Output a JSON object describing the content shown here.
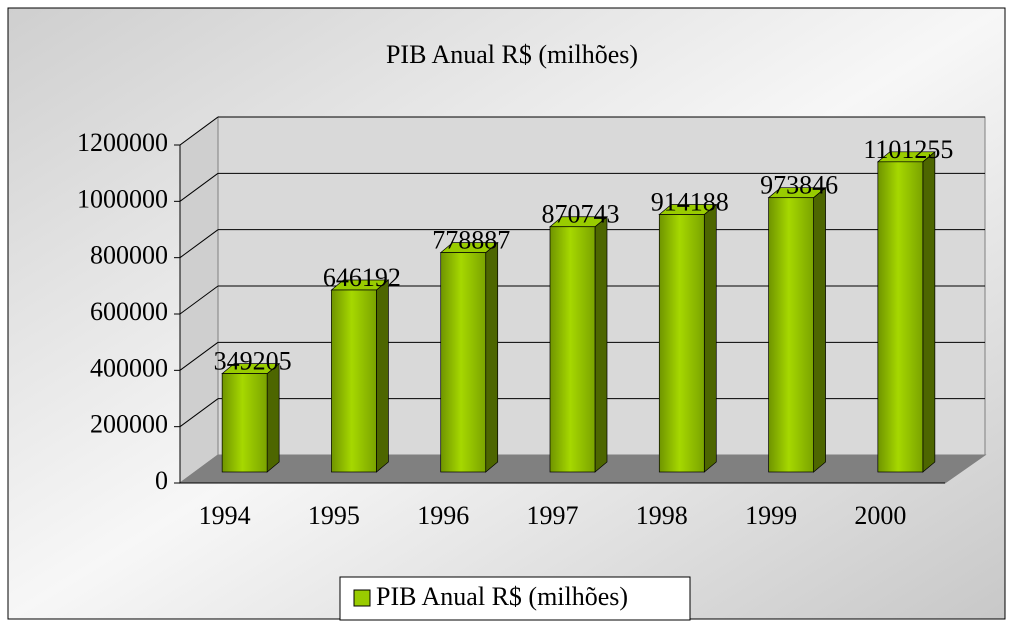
{
  "chart_data": {
    "type": "bar3d",
    "title": "PIB  Anual R$ (milhões)",
    "categories": [
      "1994",
      "1995",
      "1996",
      "1997",
      "1998",
      "1999",
      "2000"
    ],
    "series": [
      {
        "name": "PIB  Anual R$ (milhões)",
        "color": "#99cc00",
        "values": [
          349205,
          646192,
          778887,
          870743,
          914188,
          973846,
          1101255
        ]
      }
    ],
    "ylim": [
      0,
      1200000
    ],
    "yticks": [
      0,
      200000,
      400000,
      600000,
      800000,
      1000000,
      1200000
    ],
    "grid": true,
    "legend": "bottom"
  }
}
